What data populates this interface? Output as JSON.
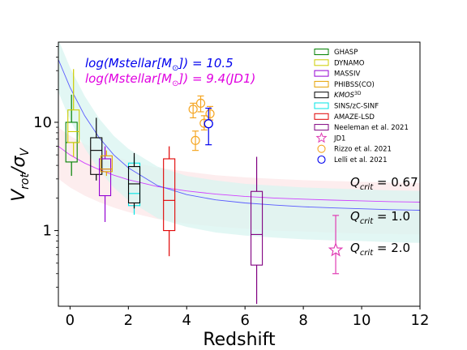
{
  "chart_data": {
    "type": "box",
    "xlabel": "Redshift",
    "ylabel": "V_rot/σ_V",
    "ylabel_parts": {
      "base1": "V",
      "sub1": "rot",
      "sep": "/",
      "base2": "σ",
      "sub2": "V"
    },
    "xlim": [
      -0.4,
      12
    ],
    "ylim": [
      0.2,
      55
    ],
    "yscale": "log",
    "x_ticks": [
      "0",
      "2",
      "4",
      "6",
      "8",
      "10",
      "12"
    ],
    "x_tick_values": [
      0,
      2,
      4,
      6,
      8,
      10,
      12
    ],
    "y_ticks": [
      "1",
      "10"
    ],
    "y_tick_values": [
      1,
      10
    ],
    "colors": {
      "ghasp": "#008000",
      "dynamo": "#cccc00",
      "massiv": "#9400d3",
      "phibss": "#e6a000",
      "kmos": "#000000",
      "sins": "#00e5e5",
      "amaze": "#e00000",
      "neeleman": "#800080",
      "jd1": "#e03cb4",
      "rizzo": "#f5a623",
      "lelli": "#0000ee",
      "curve_high": "#5a5aff",
      "curve_low": "#d040ff",
      "band_high": "#d8f4f0",
      "band_low": "#fde8ea"
    },
    "annotations": {
      "line1_prefix": "log(Mstellar[M",
      "line1_sub": "⊙",
      "line1_suffix": "]) = 10.5",
      "line2_prefix": "log(Mstellar[M",
      "line2_sub": "⊙",
      "line2_suffix": "]) = 9.4(JD1)",
      "q1_base": "Q",
      "q1_sub": "crit",
      "q1_val": " = 0.67",
      "q2_base": "Q",
      "q2_sub": "crit",
      "q2_val": " = 1.0",
      "q3_base": "Q",
      "q3_sub": "crit",
      "q3_val": " = 2.0"
    },
    "legend": [
      {
        "label": "GHASP",
        "color_key": "ghasp",
        "marker": "box"
      },
      {
        "label": "DYNAMO",
        "color_key": "dynamo",
        "marker": "box"
      },
      {
        "label": "MASSIV",
        "color_key": "massiv",
        "marker": "box"
      },
      {
        "label": "PHIBSS(CO)",
        "color_key": "phibss",
        "marker": "box"
      },
      {
        "label": "KMOS",
        "sup": "3D",
        "color_key": "kmos",
        "marker": "box"
      },
      {
        "label": "SINS/zC-SINF",
        "color_key": "sins",
        "marker": "box"
      },
      {
        "label": "AMAZE-LSD",
        "color_key": "amaze",
        "marker": "box"
      },
      {
        "label": "Neeleman et al. 2021",
        "color_key": "neeleman",
        "marker": "box"
      },
      {
        "label": "JD1",
        "color_key": "jd1",
        "marker": "star"
      },
      {
        "label": "Rizzo et al. 2021",
        "color_key": "rizzo",
        "marker": "circle"
      },
      {
        "label": "Lelli et al. 2021",
        "color_key": "lelli",
        "marker": "circle"
      }
    ],
    "boxes": [
      {
        "name": "GHASP",
        "color_key": "ghasp",
        "x": 0.05,
        "q1": 4.3,
        "median": 6.5,
        "q3": 10.0,
        "whislo": 3.2,
        "whishi": 18.0
      },
      {
        "name": "DYNAMO",
        "color_key": "dynamo",
        "x": 0.12,
        "q1": 6.5,
        "median": 8.2,
        "q3": 13.0,
        "whislo": 4.8,
        "whishi": 31.0
      },
      {
        "name": "KMOS3D",
        "color_key": "kmos",
        "x": 0.9,
        "q1": 3.3,
        "median": 5.5,
        "q3": 7.2,
        "whislo": 2.9,
        "whishi": 11.0
      },
      {
        "name": "MASSIV",
        "color_key": "massiv",
        "x": 1.2,
        "q1": 2.1,
        "median": 3.7,
        "q3": 4.6,
        "whislo": 1.2,
        "whishi": 6.0
      },
      {
        "name": "PHIBSS(CO)",
        "color_key": "phibss",
        "x": 1.25,
        "q1": 3.5,
        "median": 3.7,
        "q3": 4.9,
        "whislo": 3.2,
        "whishi": 5.5
      },
      {
        "name": "SINS/zC-SINF",
        "color_key": "sins",
        "x": 2.2,
        "q1": 1.7,
        "median": 2.2,
        "q3": 4.2,
        "whislo": 1.4,
        "whishi": 4.8
      },
      {
        "name": "KMOS3D z2",
        "color_key": "kmos",
        "x": 2.2,
        "q1": 1.8,
        "median": 2.7,
        "q3": 3.9,
        "whislo": 1.6,
        "whishi": 5.2
      },
      {
        "name": "AMAZE-LSD",
        "color_key": "amaze",
        "x": 3.4,
        "q1": 1.0,
        "median": 1.9,
        "q3": 4.6,
        "whislo": 0.58,
        "whishi": 6.0
      },
      {
        "name": "Neeleman et al. 2021",
        "color_key": "neeleman",
        "x": 6.4,
        "q1": 0.48,
        "median": 0.92,
        "q3": 2.3,
        "whislo": 0.21,
        "whishi": 4.8
      }
    ],
    "jd1": {
      "x": 9.11,
      "y": 0.66,
      "ylo": 0.4,
      "yhi": 1.38
    },
    "rizzo": [
      {
        "x": 4.22,
        "y": 13.2,
        "ylo": 11.0,
        "yhi": 15.0
      },
      {
        "x": 4.3,
        "y": 6.8,
        "ylo": 5.5,
        "yhi": 8.3
      },
      {
        "x": 4.48,
        "y": 15.0,
        "ylo": 12.5,
        "yhi": 17.5
      },
      {
        "x": 4.6,
        "y": 9.8,
        "ylo": 8.5,
        "yhi": 11.5
      },
      {
        "x": 4.8,
        "y": 12.0,
        "ylo": 10.5,
        "yhi": 14.0
      }
    ],
    "lelli": [
      {
        "x": 4.75,
        "y": 9.7,
        "ylo": 6.2,
        "yhi": 13.5
      }
    ],
    "curves": {
      "high_mass": {
        "color_key": "curve_high",
        "x": [
          -0.4,
          0.0,
          0.5,
          1.0,
          1.5,
          2.0,
          3.0,
          4.0,
          5.0,
          6.0,
          7.0,
          8.0,
          9.0,
          10.0,
          11.0,
          12.0
        ],
        "y": [
          38.0,
          21.0,
          11.5,
          7.2,
          5.0,
          3.8,
          2.6,
          2.15,
          1.92,
          1.8,
          1.72,
          1.66,
          1.62,
          1.59,
          1.56,
          1.54
        ]
      },
      "low_mass": {
        "color_key": "curve_low",
        "x": [
          -0.4,
          0.0,
          0.5,
          1.0,
          1.5,
          2.0,
          3.0,
          4.0,
          5.0,
          6.0,
          7.0,
          8.0,
          9.0,
          10.0,
          11.0,
          12.0
        ],
        "y": [
          6.0,
          5.0,
          4.2,
          3.65,
          3.25,
          2.95,
          2.55,
          2.32,
          2.17,
          2.07,
          2.0,
          1.95,
          1.91,
          1.88,
          1.85,
          1.83
        ]
      },
      "band_high": {
        "color_key": "band_high",
        "x": [
          -0.4,
          0.0,
          0.5,
          1.0,
          1.5,
          2.0,
          3.0,
          4.0,
          5.0,
          6.0,
          7.0,
          8.0,
          9.0,
          10.0,
          11.0,
          12.0
        ],
        "lower": [
          19.0,
          10.5,
          5.8,
          3.6,
          2.5,
          1.9,
          1.3,
          1.08,
          0.96,
          0.9,
          0.86,
          0.83,
          0.81,
          0.8,
          0.78,
          0.77
        ],
        "upper": [
          58.0,
          32.0,
          17.5,
          10.8,
          7.5,
          5.7,
          3.9,
          3.2,
          2.9,
          2.7,
          2.6,
          2.5,
          2.45,
          2.4,
          2.35,
          2.32
        ]
      },
      "band_low": {
        "color_key": "band_low",
        "x": [
          -0.4,
          0.0,
          0.5,
          1.0,
          1.5,
          2.0,
          3.0,
          4.0,
          5.0,
          6.0,
          7.0,
          8.0,
          9.0,
          10.0,
          11.0,
          12.0
        ],
        "lower": [
          3.0,
          2.5,
          2.1,
          1.83,
          1.63,
          1.48,
          1.28,
          1.16,
          1.09,
          1.04,
          1.0,
          0.98,
          0.96,
          0.94,
          0.93,
          0.92
        ],
        "upper": [
          9.0,
          7.5,
          6.3,
          5.5,
          4.9,
          4.4,
          3.8,
          3.5,
          3.25,
          3.1,
          3.0,
          2.92,
          2.87,
          2.82,
          2.78,
          2.75
        ]
      }
    }
  }
}
